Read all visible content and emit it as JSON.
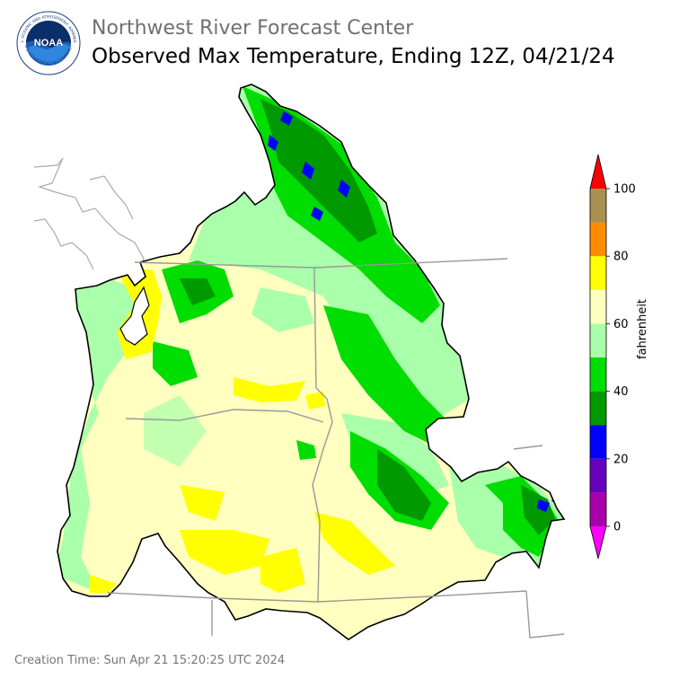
{
  "header": {
    "org": "Northwest River Forecast Center",
    "title": "Observed Max Temperature, Ending 12Z, 04/21/24",
    "logo_text": "NOAA",
    "logo_ring_top": "NATIONAL OCEANIC AND ATMOSPHERIC ADMINISTRATION",
    "logo_ring_bottom": "U.S. DEPARTMENT OF COMMERCE"
  },
  "legend": {
    "unit_label": "fahrenheit",
    "ticks": [
      "0",
      "20",
      "40",
      "60",
      "80",
      "100"
    ],
    "bins": [
      {
        "from": 0,
        "to": 10,
        "color": "#aa00aa"
      },
      {
        "from": 10,
        "to": 20,
        "color": "#6600bb"
      },
      {
        "from": 20,
        "to": 30,
        "color": "#0000ff"
      },
      {
        "from": 30,
        "to": 40,
        "color": "#009900"
      },
      {
        "from": 40,
        "to": 50,
        "color": "#00dd00"
      },
      {
        "from": 50,
        "to": 60,
        "color": "#aaffaa"
      },
      {
        "from": 60,
        "to": 70,
        "color": "#ffffc0"
      },
      {
        "from": 70,
        "to": 80,
        "color": "#ffff00"
      },
      {
        "from": 80,
        "to": 90,
        "color": "#ff8c00"
      },
      {
        "from": 90,
        "to": 100,
        "color": "#a89050"
      }
    ],
    "under_color": "#ff00ff",
    "over_color": "#ff0000"
  },
  "footer": {
    "creation_time": "Creation Time: Sun Apr 21 15:20:25 UTC 2024"
  }
}
